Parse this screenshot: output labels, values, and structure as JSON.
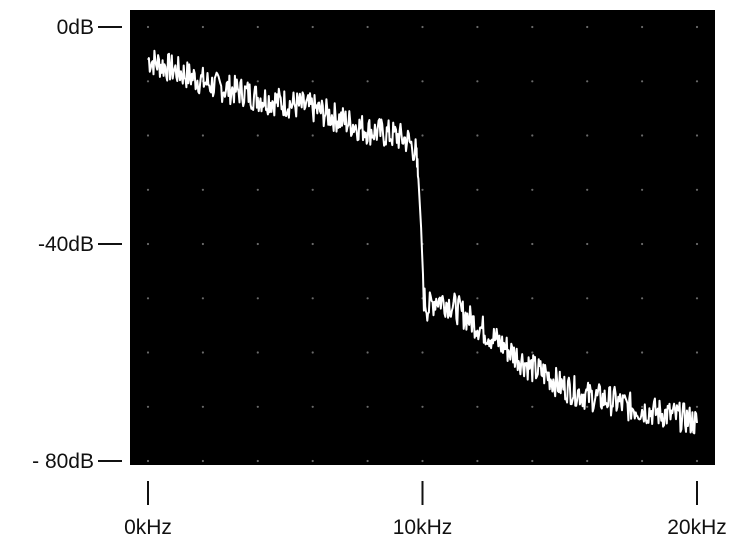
{
  "chart_data": {
    "type": "line",
    "title": "",
    "xlabel": "",
    "ylabel": "",
    "x_unit": "kHz",
    "y_unit": "dB",
    "xlim": [
      0,
      20
    ],
    "ylim": [
      -80,
      0
    ],
    "x_ticks": [
      {
        "value": 0,
        "label": "0kHz"
      },
      {
        "value": 10,
        "label": "10kHz"
      },
      {
        "value": 20,
        "label": "20kHz"
      }
    ],
    "y_ticks": [
      {
        "value": 0,
        "label": "0dB"
      },
      {
        "value": -40,
        "label": "-40dB"
      },
      {
        "value": -80,
        "label": "- 80dB"
      }
    ],
    "grid": "dotted",
    "background_color": "#000000",
    "trace_color": "#ffffff",
    "series": [
      {
        "x": [
          0,
          0.5,
          1,
          1.5,
          2,
          2.5,
          3,
          3.5,
          4,
          4.5,
          5,
          5.5,
          6,
          6.5,
          7,
          7.5,
          8,
          8.5,
          9,
          9.5,
          9.75,
          9.85,
          9.95,
          10.05,
          10.2,
          10.5,
          11,
          11.5,
          12,
          12.5,
          13,
          13.5,
          14,
          14.5,
          15,
          15.5,
          16,
          16.5,
          17,
          17.5,
          18,
          18.5,
          19,
          19.5,
          20
        ],
        "y": [
          -6,
          -7,
          -8,
          -9,
          -10,
          -11,
          -11.5,
          -12,
          -13,
          -13.5,
          -14,
          -14.5,
          -15,
          -16,
          -17,
          -18,
          -19,
          -19.5,
          -20,
          -21,
          -23,
          -28,
          -37,
          -50,
          -52,
          -50,
          -51,
          -53,
          -55,
          -57,
          -59,
          -61,
          -63,
          -64,
          -66,
          -67,
          -68,
          -68.5,
          -69,
          -70,
          -70.5,
          -71,
          -71.5,
          -72,
          -73
        ]
      }
    ]
  }
}
